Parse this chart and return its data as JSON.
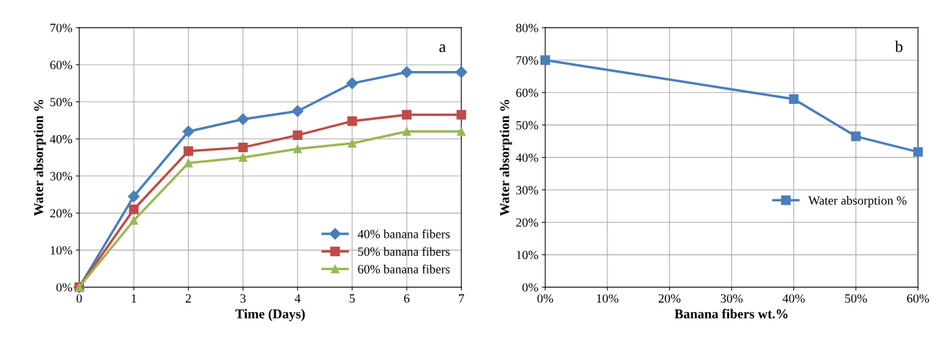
{
  "chart_data": [
    {
      "type": "line",
      "xlabel": "Time (Days)",
      "ylabel": "Water absorption %",
      "annotations": [
        "a"
      ],
      "x": [
        0,
        1,
        2,
        3,
        4,
        5,
        6,
        7
      ],
      "series": [
        {
          "name": "40% banana fibers",
          "color": "#4a7ebb",
          "marker": "diamond",
          "values": [
            0,
            24.5,
            42,
            45.3,
            47.5,
            55,
            58,
            58
          ]
        },
        {
          "name": "50% banana fibers",
          "color": "#be4b48",
          "marker": "square",
          "values": [
            0,
            21,
            36.7,
            37.7,
            41,
            44.8,
            46.5,
            46.5
          ]
        },
        {
          "name": "60% banana fibers",
          "color": "#98b954",
          "marker": "triangle",
          "values": [
            0,
            18,
            33.5,
            35,
            37.3,
            38.8,
            42,
            42
          ]
        }
      ],
      "xlim": [
        0,
        7
      ],
      "xticks": [
        0,
        1,
        2,
        3,
        4,
        5,
        6,
        7
      ],
      "ylim": [
        0,
        70
      ],
      "yticks": [
        {
          "value": 0,
          "label": "0%"
        },
        {
          "value": 10,
          "label": "10%"
        },
        {
          "value": 20,
          "label": "20%"
        },
        {
          "value": 30,
          "label": "30%"
        },
        {
          "value": 40,
          "label": "40%"
        },
        {
          "value": 50,
          "label": "50%"
        },
        {
          "value": 60,
          "label": "60%"
        },
        {
          "value": 70,
          "label": "70%"
        }
      ],
      "grid": true,
      "legend": "bottom right",
      "line_style": "solid"
    },
    {
      "type": "line",
      "xlabel": "Banana fibers wt.%",
      "ylabel": "Water absorption %",
      "annotations": [
        "b"
      ],
      "x": [
        0,
        40,
        50,
        60
      ],
      "series": [
        {
          "name": "Water absorption %",
          "color": "#4a7ebb",
          "marker": "square",
          "values": [
            70,
            58,
            46.5,
            41.7
          ]
        }
      ],
      "xlim": [
        0,
        60
      ],
      "xticks": [
        {
          "value": 0,
          "label": "0%"
        },
        {
          "value": 10,
          "label": "10%"
        },
        {
          "value": 20,
          "label": "20%"
        },
        {
          "value": 30,
          "label": "30%"
        },
        {
          "value": 40,
          "label": "40%"
        },
        {
          "value": 50,
          "label": "50%"
        },
        {
          "value": 60,
          "label": "60%"
        }
      ],
      "ylim": [
        0,
        80
      ],
      "yticks": [
        {
          "value": 0,
          "label": "0%"
        },
        {
          "value": 10,
          "label": "10%"
        },
        {
          "value": 20,
          "label": "20%"
        },
        {
          "value": 30,
          "label": "30%"
        },
        {
          "value": 40,
          "label": "40%"
        },
        {
          "value": 50,
          "label": "50%"
        },
        {
          "value": 60,
          "label": "60%"
        },
        {
          "value": 70,
          "label": "70%"
        },
        {
          "value": 80,
          "label": "80%"
        }
      ],
      "grid": true,
      "legend": "right",
      "line_style": "solid"
    }
  ]
}
